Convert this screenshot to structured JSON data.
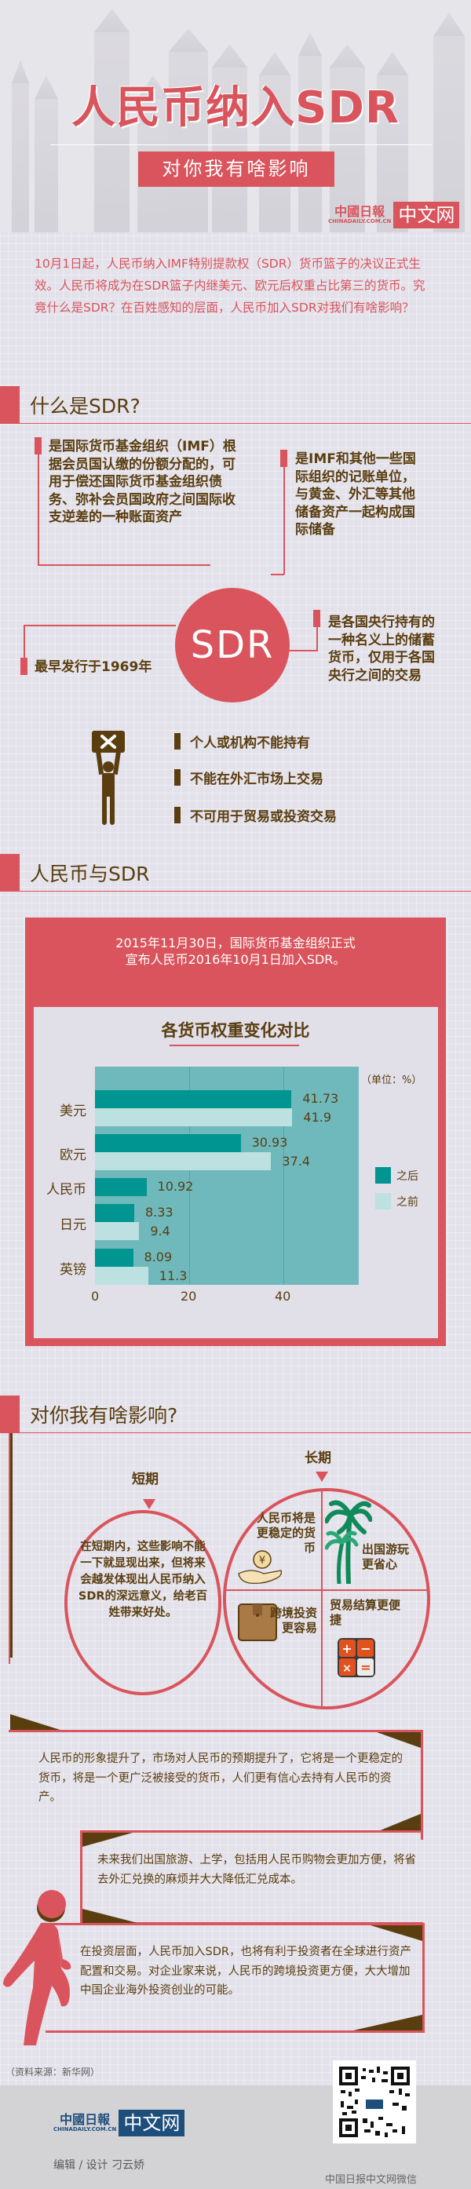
{
  "header": {
    "title": "人民币纳入SDR",
    "subtitle": "对你我有啥影响",
    "logo_cn": "中國日報",
    "logo_en": "CHINADAILY.COM.CN",
    "logo_box": "中文网"
  },
  "intro": "10月1日起，人民币纳入IMF特别提款权（SDR）货币篮子的决议正式生效。人民币将成为在SDR篮子内继美元、欧元后权重占比第三的货币。究竟什么是SDR？在百姓感知的层面，人民币加入SDR对我们有啥影响？",
  "section_what": {
    "heading": "什么是SDR?",
    "center_label": "SDR",
    "facts": [
      "是国际货币基金组织（IMF）根据会员国认缴的份额分配的，可用于偿还国际货币基金组织债务、弥补会员国政府之间国际收支逆差的一种账面资产",
      "是IMF和其他一些国际组织的记账单位，与黄金、外汇等其他储备资产一起构成国际储备",
      "最早发行于1969年",
      "是各国央行持有的一种名义上的储蓄货币，仅用于各国央行之间的交易"
    ],
    "limits": [
      "个人或机构不能持有",
      "不能在外汇市场上交易",
      "不可用于贸易或投资交易"
    ]
  },
  "section_rmb": {
    "heading": "人民币与SDR",
    "note_line1": "2015年11月30日，国际货币基金组织正式",
    "note_line2": "宣布人民币2016年10月1日加入SDR。",
    "chart_title": "各货币权重变化对比",
    "unit": "（单位：%）",
    "legend": {
      "after": "之后",
      "before": "之前"
    },
    "colors": {
      "after": "#009591",
      "before": "#bde0e0",
      "plot_bg": "#6fb9bc",
      "accent": "#d9545c"
    }
  },
  "chart_data": {
    "type": "bar",
    "orientation": "horizontal",
    "title": "各货币权重变化对比",
    "unit": "%",
    "categories": [
      "美元",
      "欧元",
      "人民币",
      "日元",
      "英镑"
    ],
    "series": [
      {
        "name": "之后",
        "values": [
          41.73,
          30.93,
          10.92,
          8.33,
          8.09
        ]
      },
      {
        "name": "之前",
        "values": [
          41.9,
          37.4,
          null,
          9.4,
          11.3
        ]
      }
    ],
    "xticks": [
      "0",
      "20",
      "40"
    ],
    "xlim": [
      0,
      56
    ],
    "legend_position": "right",
    "grid": true
  },
  "section_impact": {
    "heading": "对你我有啥影响?",
    "short_label": "短期",
    "long_label": "长期",
    "short_text": "在短期内，这些影响不能一下就显现出来，但将来会越发体现出人民币纳入SDR的深远意义，给老百姓带来好处。",
    "long_quadrants": [
      "人民币将是更稳定的货币",
      "出国游玩更省心",
      "跨境投资更容易",
      "贸易结算更便捷"
    ],
    "stories": [
      "人民币的形象提升了，市场对人民币的预期提升了，它将是一个更稳定的货币，将是一个更广泛被接受的货币，人们更有信心去持有人民币的资产。",
      "未来我们出国旅游、上学，包括用人民币购物会更加方便，将省去外汇兑换的麻烦并大大降低汇兑成本。",
      "在投资层面，人民币加入SDR，也将有利于投资者在全球进行资产配置和交易。对企业家来说，人民币的跨境投资更方便，大大增加中国企业海外投资创业的可能。"
    ]
  },
  "footer": {
    "source": "（资料来源：新华网）",
    "logo_cn": "中國日報",
    "logo_en": "CHINADAILY.COM.CN",
    "logo_box": "中文网",
    "editor": "编辑 / 设计  刁云娇",
    "qr_caption": "中国日报中文网微信"
  }
}
